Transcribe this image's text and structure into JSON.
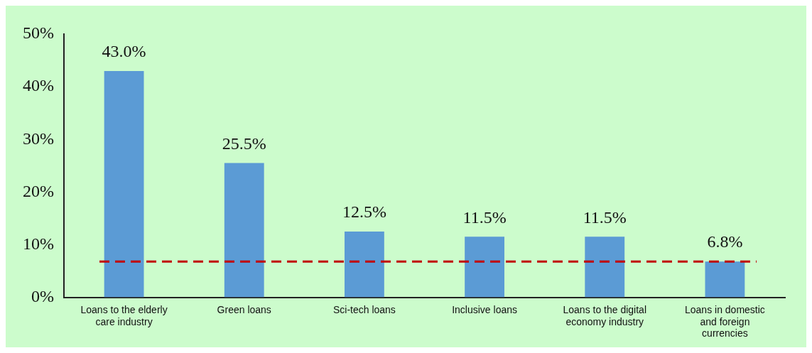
{
  "chart_data": {
    "type": "bar",
    "categories": [
      "Loans to the elderly care industry",
      "Green loans",
      "Sci-tech loans",
      "Inclusive loans",
      "Loans to the digital economy industry",
      "Loans in domestic and foreign currencies"
    ],
    "values": [
      43.0,
      25.5,
      12.5,
      11.5,
      11.5,
      6.8
    ],
    "value_labels": [
      "43.0%",
      "25.5%",
      "12.5%",
      "11.5%",
      "11.5%",
      "6.8%"
    ],
    "color": "#5b9bd5",
    "ylim": [
      0,
      50
    ],
    "yticks": [
      {
        "value": 0,
        "label": "0%"
      },
      {
        "value": 10,
        "label": "10%"
      },
      {
        "value": 20,
        "label": "20%"
      },
      {
        "value": 30,
        "label": "30%"
      },
      {
        "value": 40,
        "label": "40%"
      },
      {
        "value": 50,
        "label": "50%"
      }
    ],
    "ref_lines": [
      {
        "axis": "y",
        "value": 6.8,
        "color": "#c00000",
        "line_style": "dashed"
      }
    ],
    "grid": false,
    "legend": false
  }
}
